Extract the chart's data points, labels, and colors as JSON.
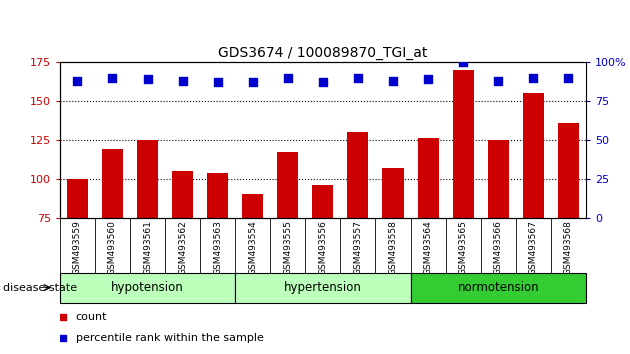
{
  "title": "GDS3674 / 100089870_TGI_at",
  "categories": [
    "GSM493559",
    "GSM493560",
    "GSM493561",
    "GSM493562",
    "GSM493563",
    "GSM493554",
    "GSM493555",
    "GSM493556",
    "GSM493557",
    "GSM493558",
    "GSM493564",
    "GSM493565",
    "GSM493566",
    "GSM493567",
    "GSM493568"
  ],
  "bar_values": [
    100,
    119,
    125,
    105,
    104,
    90,
    117,
    96,
    130,
    107,
    126,
    170,
    125,
    155,
    136
  ],
  "percentile_values": [
    88,
    90,
    89,
    88,
    87,
    87,
    90,
    87,
    90,
    88,
    89,
    100,
    88,
    90,
    90
  ],
  "bar_color": "#cc0000",
  "dot_color": "#0000cc",
  "ylim_left": [
    75,
    175
  ],
  "ylim_right": [
    0,
    100
  ],
  "yticks_left": [
    75,
    100,
    125,
    150,
    175
  ],
  "yticks_right": [
    0,
    25,
    50,
    75,
    100
  ],
  "ytick_labels_right": [
    "0",
    "25",
    "50",
    "75",
    "100%"
  ],
  "grid_values": [
    100,
    125,
    150
  ],
  "groups_info": [
    {
      "label": "hypotension",
      "start": 0,
      "end": 5,
      "color": "#bbffbb"
    },
    {
      "label": "hypertension",
      "start": 5,
      "end": 10,
      "color": "#bbffbb"
    },
    {
      "label": "normotension",
      "start": 10,
      "end": 15,
      "color": "#33cc33"
    }
  ],
  "disease_state_label": "disease state",
  "bar_width": 0.6,
  "dot_size": 30,
  "tick_label_color_left": "#cc0000",
  "tick_label_color_right": "#0000cc",
  "plot_bg": "#ffffff",
  "xtick_bg": "#d4d4d4"
}
